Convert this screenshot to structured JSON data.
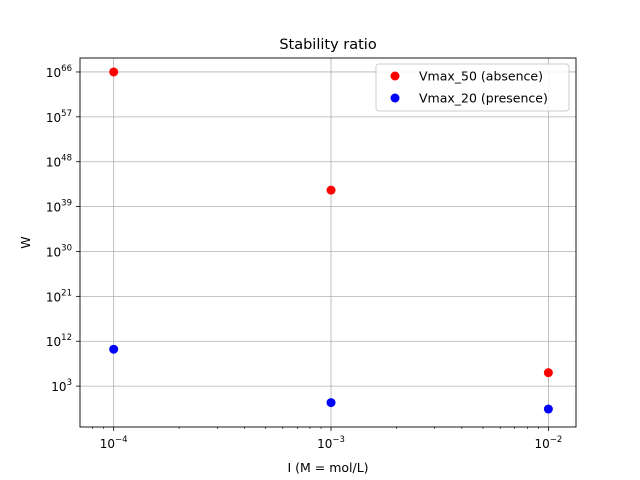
{
  "chart_data": {
    "type": "scatter",
    "title": "Stability ratio",
    "xlabel": "I (M = mol/L)",
    "ylabel": "W",
    "xscale": "log",
    "yscale": "log",
    "xlim": [
      7e-05,
      0.0134
    ],
    "ylim_exponent": [
      -5.2,
      68.8
    ],
    "grid": true,
    "legend_position": "top-right",
    "x_ticks": [
      {
        "base": "10",
        "exp": "−4",
        "value": 0.0001
      },
      {
        "base": "10",
        "exp": "−3",
        "value": 0.001
      },
      {
        "base": "10",
        "exp": "−2",
        "value": 0.01
      }
    ],
    "y_ticks": [
      {
        "base": "10",
        "exp": "3",
        "value_exponent": 3
      },
      {
        "base": "10",
        "exp": "12",
        "value_exponent": 12
      },
      {
        "base": "10",
        "exp": "21",
        "value_exponent": 21
      },
      {
        "base": "10",
        "exp": "30",
        "value_exponent": 30
      },
      {
        "base": "10",
        "exp": "39",
        "value_exponent": 39
      },
      {
        "base": "10",
        "exp": "48",
        "value_exponent": 48
      },
      {
        "base": "10",
        "exp": "57",
        "value_exponent": 57
      },
      {
        "base": "10",
        "exp": "66",
        "value_exponent": 66
      }
    ],
    "series": [
      {
        "name": "Vmax_50 (absence)",
        "color": "#ff0000",
        "x": [
          0.0001,
          0.001,
          0.01
        ],
        "y_exponent": [
          66.0,
          42.3,
          5.7
        ]
      },
      {
        "name": "Vmax_20 (presence)",
        "color": "#0000ff",
        "x": [
          0.0001,
          0.001,
          0.01
        ],
        "y_exponent": [
          10.4,
          -0.3,
          -1.6
        ]
      }
    ]
  }
}
